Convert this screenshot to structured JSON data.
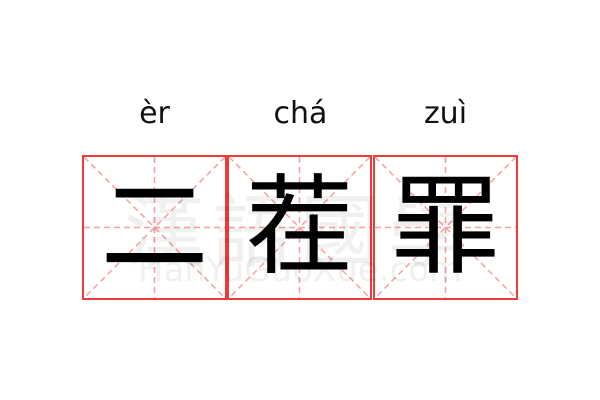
{
  "words": [
    {
      "pinyin": "èr",
      "char": "二"
    },
    {
      "pinyin": "chá",
      "char": "茬"
    },
    {
      "pinyin": "zuì",
      "char": "罪"
    }
  ],
  "watermark": {
    "chinese": "漢語國學",
    "latin": "HanYuGuoXue.com"
  },
  "colors": {
    "border": "#f03a3a",
    "guide": "#f7a0a0",
    "text": "#000000"
  }
}
